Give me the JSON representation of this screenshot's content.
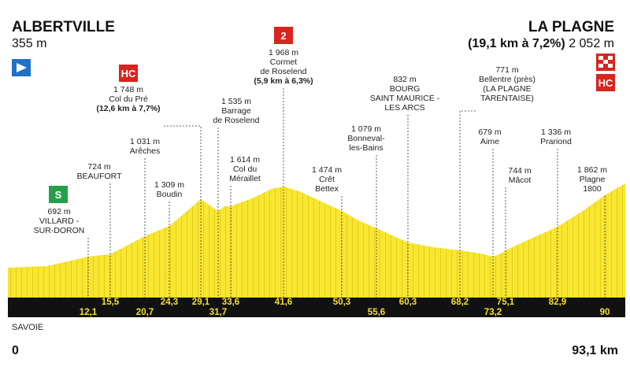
{
  "header": {
    "start": "ALBERTVILLE",
    "start_alt": "355 m",
    "finish": "LA PLAGNE",
    "finish_climb": "(19,1 km à 7,2%)",
    "finish_alt": "2 052 m"
  },
  "icons": {
    "sprint": "S",
    "col_du_pre": "HC",
    "cormet": "2",
    "finish": "HC"
  },
  "waypoints": [
    {
      "km": "12,1",
      "label": [
        "692 m",
        "VILLARD -",
        "SUR-DORON"
      ]
    },
    {
      "km": "15,5",
      "label": [
        "724 m",
        "BEAUFORT"
      ]
    },
    {
      "km": "20,7",
      "label": [
        "1 031 m",
        "Arêches"
      ]
    },
    {
      "km": "24,3",
      "label": [
        "1 309 m",
        "Boudin"
      ]
    },
    {
      "km": "29,1",
      "label": [
        "1 748 m",
        "Col du Pré",
        "(12,6 km à 7,7%)"
      ]
    },
    {
      "km": "31,7",
      "label": [
        "1 535 m",
        "Barrage",
        "de Roselend"
      ]
    },
    {
      "km": "33,6",
      "label": [
        "1 614 m",
        "Col du",
        "Méraillet"
      ]
    },
    {
      "km": "41,6",
      "label": [
        "1 968 m",
        "Cormet",
        "de Roselend",
        "(5,9 km à 6,3%)"
      ]
    },
    {
      "km": "50,3",
      "label": [
        "1 474 m",
        "Crêt",
        "Bettex"
      ]
    },
    {
      "km": "55,6",
      "label": [
        "1 079 m",
        "Bonneval-",
        "les-Bains"
      ]
    },
    {
      "km": "60,3",
      "label": [
        "832 m",
        "BOURG",
        "SAINT MAURICE -",
        "LES ARCS"
      ]
    },
    {
      "km": "68,2",
      "label": [
        "771 m",
        "Bellentre (près)",
        "(LA PLAGNE",
        "TARENTAISE)"
      ]
    },
    {
      "km": "73,2",
      "label": [
        "679 m",
        "Aime"
      ]
    },
    {
      "km": "75,1",
      "label": [
        "744 m",
        "Mâcot"
      ]
    },
    {
      "km": "82,9",
      "label": [
        "1 336 m",
        "Prariond"
      ]
    },
    {
      "km": "90",
      "label": [
        "1 862 m",
        "Plagne",
        "1800"
      ]
    }
  ],
  "footer": {
    "region": "SAVOIE",
    "start_km": "0",
    "total": "93,1 km"
  }
}
